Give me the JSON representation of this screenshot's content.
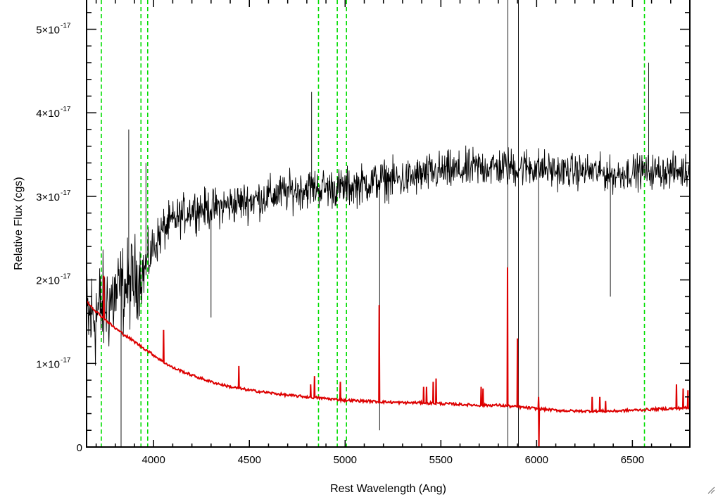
{
  "chart_data": {
    "type": "line",
    "title": "",
    "xlabel": "Rest Wavelength (Ang)",
    "ylabel": "Relative Flux (cgs)",
    "xlim": [
      3650,
      6800
    ],
    "ylim": [
      0,
      5.35e-17
    ],
    "x_ticks": [
      {
        "value": 4000,
        "label": "4000"
      },
      {
        "value": 4500,
        "label": "4500"
      },
      {
        "value": 5000,
        "label": "5000"
      },
      {
        "value": 5500,
        "label": "5500"
      },
      {
        "value": 6000,
        "label": "6000"
      },
      {
        "value": 6500,
        "label": "6500"
      }
    ],
    "y_ticks": [
      {
        "value": 0,
        "label": "0"
      },
      {
        "value": 1e-17,
        "mantissa": "1",
        "exponent": "-17"
      },
      {
        "value": 2e-17,
        "mantissa": "2",
        "exponent": "-17"
      },
      {
        "value": 3e-17,
        "mantissa": "3",
        "exponent": "-17"
      },
      {
        "value": 4e-17,
        "mantissa": "4",
        "exponent": "-17"
      },
      {
        "value": 5e-17,
        "mantissa": "5",
        "exponent": "-17"
      }
    ],
    "grid": false,
    "reference_lines": {
      "style": "dashed",
      "color": "#00dd00",
      "x": [
        3727,
        3934,
        3969,
        4861,
        4959,
        5007,
        6563
      ]
    },
    "series": [
      {
        "color": "#000000",
        "style": "noisy-line",
        "continuum_x": [
          3650,
          3700,
          3750,
          3800,
          3850,
          3900,
          3950,
          4000,
          4050,
          4100,
          4200,
          4300,
          4400,
          4500,
          4600,
          4700,
          4800,
          4900,
          5000,
          5100,
          5200,
          5300,
          5400,
          5500,
          5600,
          5700,
          5800,
          5900,
          6000,
          6100,
          6200,
          6300,
          6400,
          6500,
          6600,
          6700,
          6800
        ],
        "continuum_y": [
          1.5e-17,
          1.6e-17,
          1.7e-17,
          1.8e-17,
          1.9e-17,
          2e-17,
          2.1e-17,
          2.4e-17,
          2.6e-17,
          2.7e-17,
          2.85e-17,
          2.85e-17,
          2.9e-17,
          2.95e-17,
          3e-17,
          3.05e-17,
          3.1e-17,
          3.1e-17,
          3.1e-17,
          3.15e-17,
          3.2e-17,
          3.2e-17,
          3.25e-17,
          3.3e-17,
          3.3e-17,
          3.35e-17,
          3.35e-17,
          3.35e-17,
          3.35e-17,
          3.3e-17,
          3.3e-17,
          3.3e-17,
          3.25e-17,
          3.3e-17,
          3.3e-17,
          3.3e-17,
          3.3e-17
        ],
        "noise_amplitude": [
          1e-17,
          1e-17,
          9e-18,
          9e-18,
          8e-18,
          8e-18,
          5e-18,
          4e-18,
          4e-18,
          3.5e-18,
          3.5e-18,
          3.5e-18,
          3.5e-18,
          3.5e-18,
          3.5e-18,
          3.5e-18,
          3.5e-18,
          3.5e-18,
          3.5e-18,
          3.5e-18,
          3.5e-18,
          3.5e-18,
          3.5e-18,
          3.5e-18,
          3.5e-18,
          3.5e-18,
          3.5e-18,
          3.5e-18,
          3.5e-18,
          3e-18,
          3e-18,
          3e-18,
          3e-18,
          3e-18,
          3e-18,
          3e-18,
          3e-18
        ],
        "features": [
          {
            "x": 3830,
            "y": 0.0
          },
          {
            "x": 3870,
            "y": 3.8e-17
          },
          {
            "x": 3960,
            "y": 3.4e-17
          },
          {
            "x": 4300,
            "y": 1.55e-17
          },
          {
            "x": 4825,
            "y": 4.25e-17
          },
          {
            "x": 5180,
            "y": 2e-18
          },
          {
            "x": 5850,
            "y": 5.4e-17
          },
          {
            "x": 5850,
            "y": 0.0
          },
          {
            "x": 5905,
            "y": 5.4e-17
          },
          {
            "x": 5905,
            "y": 0.0
          },
          {
            "x": 6010,
            "y": 0.0
          },
          {
            "x": 6385,
            "y": 1.8e-17
          },
          {
            "x": 6585,
            "y": 4.6e-17
          }
        ]
      },
      {
        "color": "#dd0000",
        "style": "line",
        "continuum_x": [
          3650,
          3700,
          3750,
          3800,
          3850,
          3900,
          3950,
          4000,
          4050,
          4100,
          4200,
          4300,
          4400,
          4500,
          4600,
          4700,
          4800,
          4900,
          5000,
          5100,
          5200,
          5300,
          5400,
          5500,
          5600,
          5700,
          5800,
          5900,
          6000,
          6100,
          6200,
          6300,
          6400,
          6500,
          6600,
          6700,
          6800
        ],
        "continuum_y": [
          1.75e-17,
          1.62e-17,
          1.52e-17,
          1.42e-17,
          1.34e-17,
          1.26e-17,
          1.18e-17,
          1.1e-17,
          1.02e-17,
          9.5e-18,
          8.6e-18,
          7.8e-18,
          7.2e-18,
          6.8e-18,
          6.5e-18,
          6.2e-18,
          6e-18,
          5.8e-18,
          5.6e-18,
          5.5e-18,
          5.4e-18,
          5.3e-18,
          5.3e-18,
          5.2e-18,
          5.1e-18,
          5e-18,
          5e-18,
          4.8e-18,
          4.6e-18,
          4.4e-18,
          4.3e-18,
          4.3e-18,
          4.3e-18,
          4.4e-18,
          4.5e-18,
          4.6e-18,
          4.7e-18
        ],
        "peaks": [
          {
            "x": 3740,
            "y": 2.05e-17
          },
          {
            "x": 4052,
            "y": 1.4e-17
          },
          {
            "x": 4445,
            "y": 9.7e-18
          },
          {
            "x": 4820,
            "y": 7.5e-18
          },
          {
            "x": 4840,
            "y": 8.5e-18
          },
          {
            "x": 4975,
            "y": 7.8e-18
          },
          {
            "x": 5178,
            "y": 1.7e-17
          },
          {
            "x": 5410,
            "y": 7.2e-18
          },
          {
            "x": 5425,
            "y": 7.2e-18
          },
          {
            "x": 5460,
            "y": 7.8e-18
          },
          {
            "x": 5475,
            "y": 8.2e-18
          },
          {
            "x": 5710,
            "y": 7.2e-18
          },
          {
            "x": 5720,
            "y": 7e-18
          },
          {
            "x": 5848,
            "y": 2.15e-17
          },
          {
            "x": 5900,
            "y": 1.3e-17
          },
          {
            "x": 6010,
            "y": 6e-18
          },
          {
            "x": 6290,
            "y": 6e-18
          },
          {
            "x": 6330,
            "y": 6e-18
          },
          {
            "x": 6360,
            "y": 5.5e-18
          },
          {
            "x": 6730,
            "y": 7.5e-18
          },
          {
            "x": 6765,
            "y": 7e-18
          },
          {
            "x": 6790,
            "y": 6.8e-18
          }
        ],
        "dips": [
          {
            "x": 6012,
            "y": 0.0
          }
        ]
      }
    ]
  },
  "ui": {
    "resize_grip_icon": "resize-grip-icon"
  }
}
